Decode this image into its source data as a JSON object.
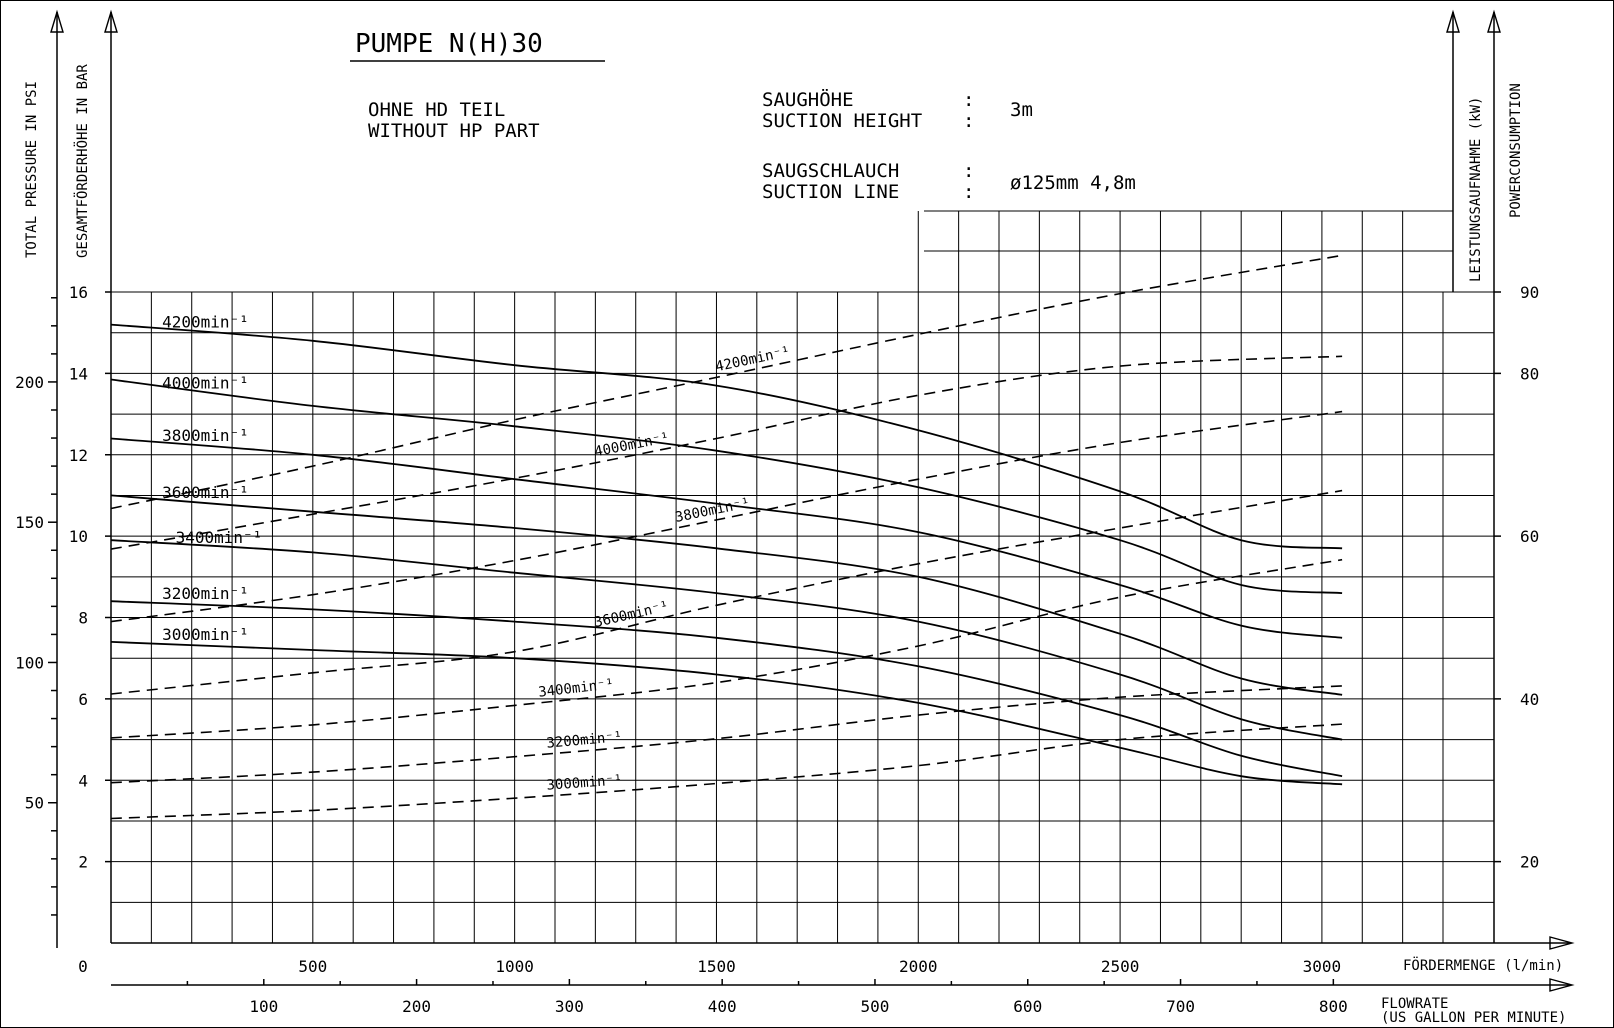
{
  "title": "PUMPE N(H)30",
  "note_line1": "OHNE HD TEIL",
  "note_line2": "WITHOUT HP PART",
  "suction_height_label_de": "SAUGHÖHE",
  "suction_height_label_en": "SUCTION HEIGHT",
  "suction_height_value": "3m",
  "suction_line_label_de": "SAUGSCHLAUCH",
  "suction_line_label_en": "SUCTION LINE",
  "suction_line_value": "ø125mm 4,8m",
  "colon": ":",
  "axis_psi_label": "TOTAL PRESSURE IN PSI",
  "axis_bar_label": "GESAMTFÖRDERHÖHE IN BAR",
  "axis_kw_label_de": "LEISTUNGSAUFNAHME (kW)",
  "axis_kw_label_en": "POWERCONSUMPTION",
  "axis_lpm_label": "FÖRDERMENGE (l/min)",
  "axis_gpm_label_1": "FLOWRATE",
  "axis_gpm_label_2": "(US GALLON PER MINUTE)",
  "chart_data": {
    "type": "line",
    "title": "PUMPE N(H)30",
    "x_unit": "l/min",
    "xlim": [
      0,
      3400
    ],
    "x_ticks": [
      500,
      1000,
      1500,
      2000,
      2500,
      3000
    ],
    "x_origin_label": "0",
    "gpm_ticks": [
      100,
      200,
      300,
      400,
      500,
      600,
      700,
      800
    ],
    "bar_ylim": [
      0,
      16
    ],
    "bar_ticks": [
      2,
      4,
      6,
      8,
      10,
      12,
      14,
      16
    ],
    "psi_ticks": [
      50,
      100,
      150,
      200
    ],
    "kw_ylim": [
      10,
      90
    ],
    "kw_ticks": [
      20,
      40,
      60,
      80,
      90
    ],
    "grid": true,
    "head_curves": [
      {
        "name": "4200",
        "x": [
          0,
          500,
          1000,
          1500,
          2000,
          2500,
          2800,
          3050
        ],
        "y": [
          15.2,
          14.8,
          14.2,
          13.7,
          12.6,
          11.1,
          9.9,
          9.7
        ]
      },
      {
        "name": "4000",
        "x": [
          0,
          500,
          1000,
          1500,
          2000,
          2500,
          2800,
          3050
        ],
        "y": [
          13.85,
          13.2,
          12.7,
          12.1,
          11.2,
          9.9,
          8.8,
          8.6
        ]
      },
      {
        "name": "3800",
        "x": [
          0,
          500,
          1000,
          1500,
          2000,
          2500,
          2800,
          3050
        ],
        "y": [
          12.4,
          12.0,
          11.4,
          10.8,
          10.1,
          8.8,
          7.8,
          7.5
        ]
      },
      {
        "name": "3600",
        "x": [
          0,
          500,
          1000,
          1500,
          2000,
          2500,
          2800,
          3050
        ],
        "y": [
          11.0,
          10.6,
          10.2,
          9.7,
          9.0,
          7.6,
          6.5,
          6.1
        ]
      },
      {
        "name": "3400",
        "x": [
          0,
          500,
          1000,
          1500,
          2000,
          2500,
          2800,
          3050
        ],
        "y": [
          9.9,
          9.6,
          9.1,
          8.6,
          7.9,
          6.6,
          5.5,
          5.0
        ]
      },
      {
        "name": "3200",
        "x": [
          0,
          500,
          1000,
          1500,
          2000,
          2500,
          2800,
          3050
        ],
        "y": [
          8.4,
          8.2,
          7.9,
          7.5,
          6.8,
          5.6,
          4.6,
          4.1
        ]
      },
      {
        "name": "3000",
        "x": [
          0,
          500,
          1000,
          1500,
          2000,
          2500,
          2800,
          3050
        ],
        "y": [
          7.4,
          7.2,
          7.0,
          6.6,
          5.9,
          4.8,
          4.1,
          3.9
        ]
      }
    ],
    "power_curves": [
      {
        "name": "4200",
        "x": [
          0,
          500,
          1000,
          1500,
          2000,
          2500,
          3050
        ],
        "y": [
          63.4,
          68.6,
          74.3,
          79.5,
          84.8,
          89.8,
          94.5
        ]
      },
      {
        "name": "4000",
        "x": [
          0,
          500,
          1000,
          1500,
          2000,
          2500,
          3050
        ],
        "y": [
          58.4,
          62.7,
          67.1,
          72.0,
          77.3,
          80.9,
          82.1
        ]
      },
      {
        "name": "3800",
        "x": [
          0,
          500,
          1000,
          1500,
          2000,
          2500,
          3050
        ],
        "y": [
          49.5,
          52.8,
          57.0,
          62.0,
          67.0,
          71.5,
          75.3
        ]
      },
      {
        "name": "3600",
        "x": [
          0,
          500,
          1000,
          1500,
          2000,
          2500,
          3050
        ],
        "y": [
          40.6,
          43.2,
          45.8,
          51.5,
          56.6,
          61.0,
          65.6
        ]
      },
      {
        "name": "3400",
        "x": [
          0,
          500,
          1000,
          1500,
          2000,
          2500,
          3050
        ],
        "y": [
          35.2,
          36.8,
          39.2,
          42.0,
          46.5,
          52.5,
          57.1
        ]
      },
      {
        "name": "3200",
        "x": [
          0,
          500,
          1000,
          1500,
          2000,
          2500,
          3050
        ],
        "y": [
          29.7,
          31.0,
          32.9,
          35.1,
          38.0,
          40.2,
          41.6
        ]
      },
      {
        "name": "3000",
        "x": [
          0,
          500,
          1000,
          1500,
          2000,
          2500,
          3050
        ],
        "y": [
          25.3,
          26.3,
          27.8,
          29.6,
          31.8,
          35.0,
          36.9
        ]
      }
    ],
    "curve_label_suffix": "min⁻¹"
  }
}
